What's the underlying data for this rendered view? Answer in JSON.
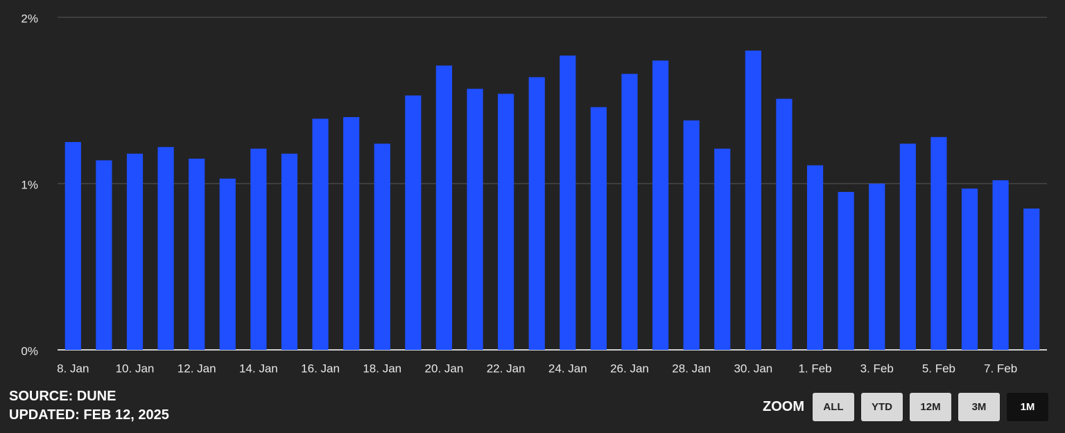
{
  "chart_data": {
    "type": "bar",
    "categories": [
      "8. Jan",
      null,
      "10. Jan",
      null,
      "12. Jan",
      null,
      "14. Jan",
      null,
      "16. Jan",
      null,
      "18. Jan",
      null,
      "20. Jan",
      null,
      "22. Jan",
      null,
      "24. Jan",
      null,
      "26. Jan",
      null,
      "28. Jan",
      null,
      "30. Jan",
      null,
      "1. Feb",
      null,
      "3. Feb",
      null,
      "5. Feb",
      null,
      "7. Feb",
      null
    ],
    "values": [
      1.25,
      1.14,
      1.18,
      1.22,
      1.15,
      1.03,
      1.21,
      1.18,
      1.39,
      1.4,
      1.24,
      1.53,
      1.71,
      1.57,
      1.54,
      1.64,
      1.77,
      1.46,
      1.66,
      1.74,
      1.38,
      1.21,
      1.8,
      1.51,
      1.11,
      0.95,
      1.0,
      1.24,
      1.28,
      0.97,
      1.02,
      0.85
    ],
    "color": "#1f4fff",
    "ylim": [
      0,
      2
    ],
    "yticks": [
      {
        "value": 0,
        "label": "0%"
      },
      {
        "value": 1,
        "label": "1%"
      },
      {
        "value": 2,
        "label": "2%"
      }
    ],
    "grid": true
  },
  "footer": {
    "source": "SOURCE: DUNE",
    "updated": "UPDATED: FEB 12, 2025"
  },
  "zoom": {
    "label": "ZOOM",
    "buttons": [
      "ALL",
      "YTD",
      "12M",
      "3M",
      "1M"
    ],
    "active": "1M"
  }
}
